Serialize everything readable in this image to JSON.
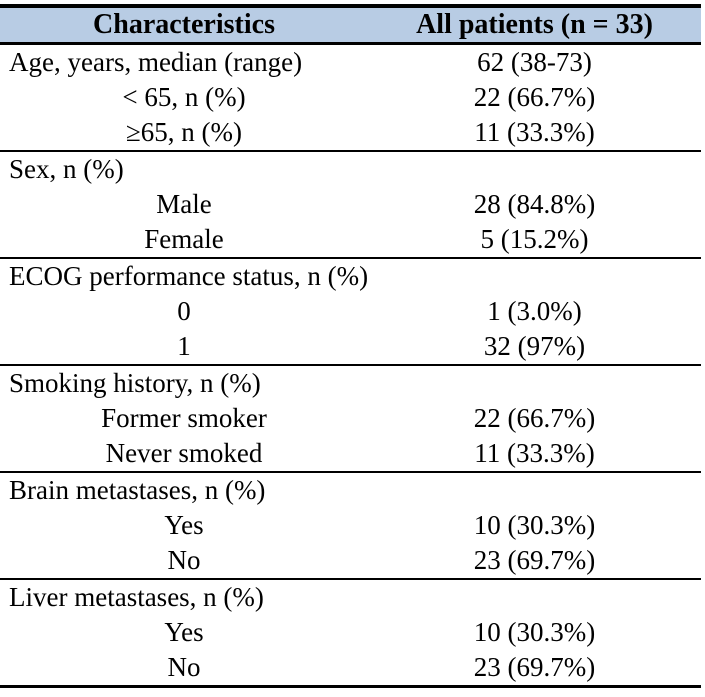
{
  "table": {
    "title_row": {
      "col1": "Characteristics",
      "col2": "All patients (n = 33)"
    },
    "sections": [
      {
        "rows": [
          {
            "label": "Age, years, median (range)",
            "value": "62 (38-73)",
            "indent": false
          },
          {
            "label": "< 65, n (%)",
            "value": "22 (66.7%)",
            "indent": true
          },
          {
            "label": "≥65, n (%)",
            "value": "11 (33.3%)",
            "indent": true
          }
        ]
      },
      {
        "rows": [
          {
            "label": "Sex, n (%)",
            "value": "",
            "indent": false
          },
          {
            "label": "Male",
            "value": "28 (84.8%)",
            "indent": true
          },
          {
            "label": "Female",
            "value": "5 (15.2%)",
            "indent": true
          }
        ]
      },
      {
        "rows": [
          {
            "label": "ECOG performance status, n (%)",
            "value": "",
            "indent": false
          },
          {
            "label": "0",
            "value": "1 (3.0%)",
            "indent": true
          },
          {
            "label": "1",
            "value": "32 (97%)",
            "indent": true
          }
        ]
      },
      {
        "rows": [
          {
            "label": "Smoking history, n (%)",
            "value": "",
            "indent": false
          },
          {
            "label": "Former smoker",
            "value": "22 (66.7%)",
            "indent": true
          },
          {
            "label": "Never smoked",
            "value": "11 (33.3%)",
            "indent": true
          }
        ]
      },
      {
        "rows": [
          {
            "label": "Brain metastases, n (%)",
            "value": "",
            "indent": false
          },
          {
            "label": "Yes",
            "value": "10 (30.3%)",
            "indent": true
          },
          {
            "label": "No",
            "value": "23 (69.7%)",
            "indent": true
          }
        ]
      },
      {
        "rows": [
          {
            "label": "Liver metastases, n (%)",
            "value": "",
            "indent": false
          },
          {
            "label": "Yes",
            "value": "10 (30.3%)",
            "indent": true
          },
          {
            "label": "No",
            "value": "23 (69.7%)",
            "indent": true
          }
        ]
      }
    ]
  },
  "colors": {
    "header_bg": "#b8cce4",
    "border": "#000000",
    "text": "#000000",
    "background": "#ffffff"
  }
}
